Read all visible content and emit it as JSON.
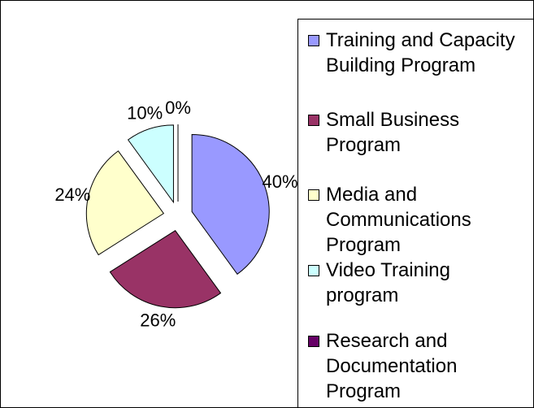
{
  "chart_data": {
    "type": "pie",
    "categories": [
      "Training and Capacity Building Program",
      "Small Business Program",
      "Media and Communications Program",
      "Video Training program",
      "Research and Documentation Program"
    ],
    "values": [
      40,
      26,
      24,
      10,
      0
    ],
    "value_labels": [
      "40%",
      "26%",
      "24%",
      "10%",
      "0%"
    ],
    "colors": [
      "#9999ff",
      "#993366",
      "#ffffcc",
      "#ccffff",
      "#660066"
    ]
  }
}
